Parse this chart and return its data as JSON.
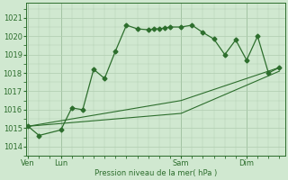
{
  "background_color": "#d0e8d0",
  "grid_color": "#b0ccb0",
  "line_color": "#2d6e2d",
  "ylabel_text": "Pression niveau de la mer( hPa )",
  "xtick_labels": [
    "Ven",
    "Lun",
    "Sam",
    "Dim"
  ],
  "xtick_positions": [
    0,
    3,
    14,
    20
  ],
  "ylim": [
    1013.5,
    1021.8
  ],
  "yticks": [
    1014,
    1015,
    1016,
    1017,
    1018,
    1019,
    1020,
    1021
  ],
  "xlim": [
    -0.2,
    23.5
  ],
  "line1_x": [
    0,
    1,
    3,
    4,
    5,
    6,
    7,
    8,
    9,
    10,
    11,
    11.5,
    12,
    12.5,
    13,
    14,
    15,
    16,
    17,
    18,
    19,
    20,
    21,
    22,
    23
  ],
  "line1_y": [
    1015.1,
    1014.6,
    1014.9,
    1016.1,
    1016.0,
    1018.2,
    1017.7,
    1019.2,
    1020.6,
    1020.4,
    1020.35,
    1020.4,
    1020.4,
    1020.45,
    1020.5,
    1020.5,
    1020.6,
    1020.2,
    1019.85,
    1019.0,
    1019.8,
    1018.7,
    1020.0,
    1018.0,
    1018.3
  ],
  "line2_x": [
    0,
    14,
    23
  ],
  "line2_y": [
    1015.1,
    1016.5,
    1018.3
  ],
  "line3_x": [
    0,
    14,
    23
  ],
  "line3_y": [
    1015.1,
    1015.8,
    1018.1
  ],
  "marker_size": 2.5,
  "vline_positions": [
    0,
    3,
    14,
    20
  ]
}
